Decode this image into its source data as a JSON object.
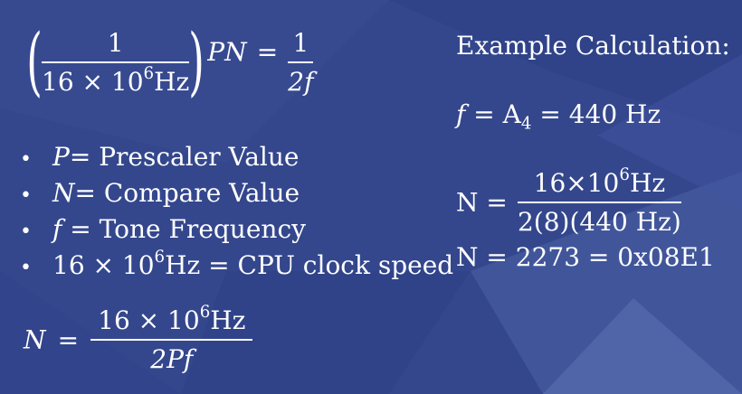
{
  "colors": {
    "background": "#34478d",
    "text": "#ffffff"
  },
  "formula_main": {
    "num": "1",
    "den_prefix": "16 × 10",
    "den_exp": "6",
    "den_suffix": "Hz",
    "pn": "PN",
    "eq": "=",
    "rhs_num": "1",
    "rhs_den": "2f"
  },
  "bullets": [
    {
      "var": "P",
      "text": "= Prescaler Value"
    },
    {
      "var": "N",
      "text": "= Compare Value"
    },
    {
      "var": "f",
      "text": " = Tone Frequency"
    }
  ],
  "bullet_clock": {
    "prefix": "16 × 10",
    "exp": "6",
    "suffix": "Hz = CPU clock speed"
  },
  "formula_n": {
    "lhs": "N",
    "eq": "=",
    "num_prefix": "16 × 10",
    "num_exp": "6",
    "num_suffix": "Hz",
    "den": "2Pf"
  },
  "example": {
    "title": "Example Calculation:",
    "f_var": "f",
    "f_eq": " = A",
    "f_sub": "4",
    "f_rest": " = 440 Hz",
    "n_lhs": "N =",
    "n_num_prefix": "16×10",
    "n_num_exp": "6",
    "n_num_suffix": "Hz",
    "n_den": "2(8)(440 Hz)",
    "result": "N = 2273 = 0x08E1"
  }
}
